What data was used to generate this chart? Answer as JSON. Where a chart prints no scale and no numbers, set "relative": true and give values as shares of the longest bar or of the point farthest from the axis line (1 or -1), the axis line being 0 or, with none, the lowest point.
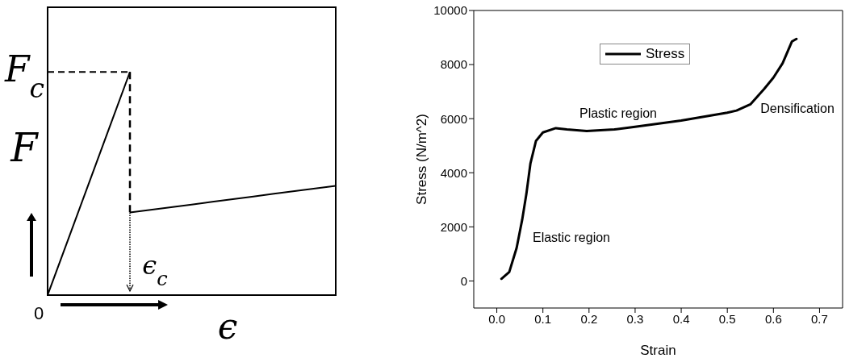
{
  "chart_data": [
    {
      "type": "line",
      "relative": true,
      "tick_labels": false,
      "categories": [
        null,
        null,
        null,
        null,
        null,
        null,
        null,
        null,
        null,
        null,
        null,
        null,
        null,
        null,
        null
      ],
      "series": [
        {
          "color": "#000000",
          "values": [
            0,
            0.25,
            0.5,
            0.75,
            1,
            null,
            null,
            null,
            null,
            null,
            null,
            null,
            null,
            null,
            null
          ]
        },
        {
          "color": "#000000",
          "values": [
            null,
            null,
            null,
            null,
            0.37,
            0.382,
            0.394,
            0.406,
            0.418,
            0.43,
            0.442,
            0.454,
            0.466,
            0.478,
            0.49
          ]
        }
      ],
      "ref_lines": [
        {
          "axis": "y",
          "value": 1,
          "label": "F$_{c}$",
          "line_style": "dashed",
          "color": "#000000"
        }
      ],
      "annotations": [
        "F",
        "ϵ$_{c}$",
        "ϵ",
        "0"
      ]
    },
    {
      "type": "line",
      "xlabel": "Strain",
      "ylabel": "Stress (N/m^2)",
      "xlim": [
        -0.05,
        0.75
      ],
      "xticks": [
        {
          "value": 0,
          "label": "0.0"
        },
        0.1,
        0.2,
        0.3,
        0.4,
        0.5,
        0.6,
        0.7
      ],
      "ylim": [
        -1000,
        10000
      ],
      "yticks": [
        0,
        2000,
        4000,
        6000,
        8000,
        10000
      ],
      "legend": "top",
      "x": [
        0.01,
        0.027,
        0.043,
        0.055,
        0.064,
        0.073,
        0.085,
        0.1,
        0.128,
        0.152,
        0.195,
        0.255,
        0.3,
        0.4,
        0.5,
        0.52,
        0.55,
        0.58,
        0.6,
        0.62,
        0.64,
        0.65
      ],
      "series": [
        {
          "name": "Stress",
          "color": "#000000",
          "values": [
            80,
            330,
            1220,
            2260,
            3200,
            4350,
            5180,
            5490,
            5650,
            5600,
            5540,
            5600,
            5700,
            5930,
            6220,
            6300,
            6530,
            7100,
            7520,
            8050,
            8850,
            8950
          ]
        }
      ],
      "annotations": [
        "Plastic region",
        "Elastic region",
        "Densification"
      ]
    }
  ]
}
